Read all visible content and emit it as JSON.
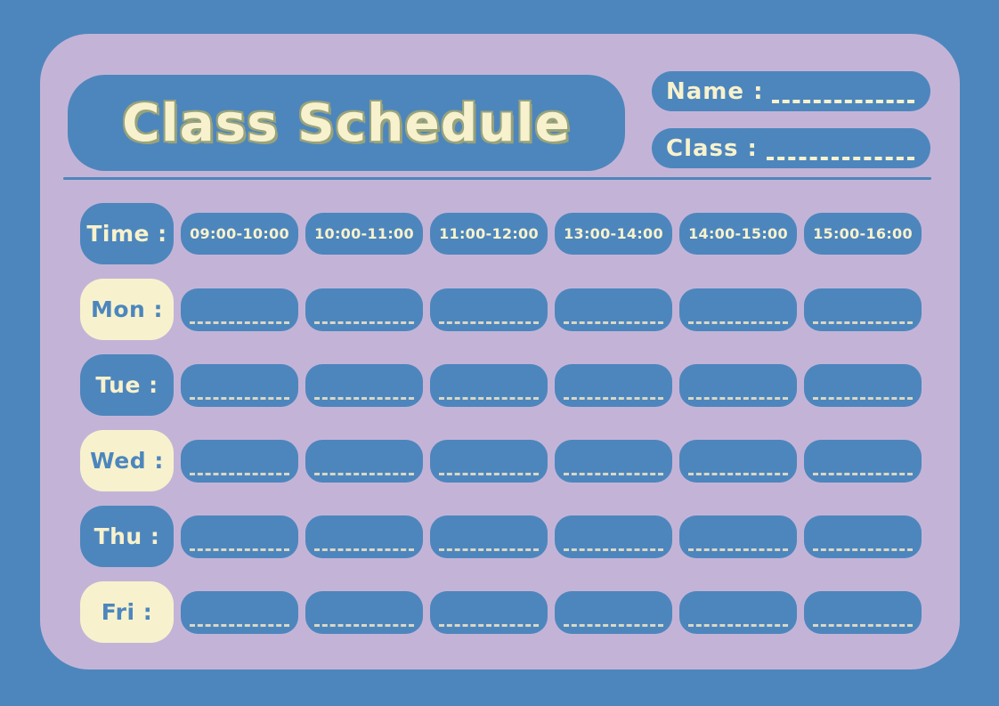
{
  "title": "Class Schedule",
  "name_field": {
    "label": "Name :"
  },
  "class_field": {
    "label": "Class :"
  },
  "schedule": {
    "time_label": "Time :",
    "time_slots": [
      "09:00-10:00",
      "10:00-11:00",
      "11:00-12:00",
      "13:00-14:00",
      "14:00-15:00",
      "15:00-16:00"
    ],
    "days": [
      {
        "label": "Mon :",
        "style": "cream"
      },
      {
        "label": "Tue :",
        "style": "blue"
      },
      {
        "label": "Wed :",
        "style": "cream"
      },
      {
        "label": "Thu :",
        "style": "blue"
      },
      {
        "label": "Fri :",
        "style": "cream"
      }
    ],
    "cells_per_day": 6
  },
  "colors": {
    "background_blue": "#4d86bd",
    "card_lavender": "#c3b4d7",
    "cream": "#f7f2cd",
    "title_outline_olive": "#99a37a",
    "cell_dash": "#d8d7c6"
  }
}
